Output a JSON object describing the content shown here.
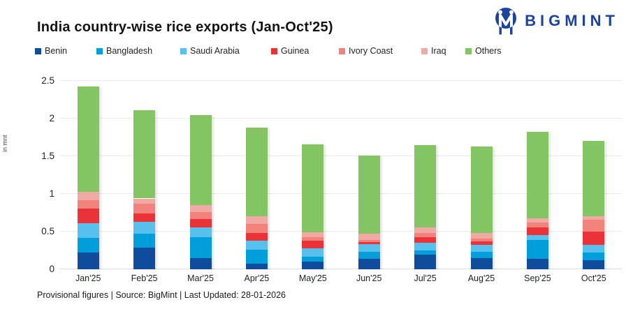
{
  "header": {
    "title": "India country-wise rice exports (Jan-Oct'25)",
    "logo_text": "BIGMINT",
    "logo_color": "#1b449e"
  },
  "chart_data": {
    "type": "bar",
    "stacked": true,
    "title": "India country-wise rice exports (Jan-Oct'25)",
    "ylabel": "in mnt",
    "ylim": [
      0,
      2.5
    ],
    "yticks": [
      0,
      0.5,
      1,
      1.5,
      2,
      2.5
    ],
    "grid": true,
    "legend_position": "top",
    "categories": [
      "Jan'25",
      "Feb'25",
      "Mar'25",
      "Apr'25",
      "May'25",
      "Jun'25",
      "Jul'25",
      "Aug'25",
      "Sep'25",
      "Oct'25"
    ],
    "series": [
      {
        "name": "Benin",
        "color": "#0f4c9c",
        "values": [
          0.22,
          0.29,
          0.15,
          0.07,
          0.1,
          0.14,
          0.19,
          0.15,
          0.14,
          0.12
        ]
      },
      {
        "name": "Bangladesh",
        "color": "#009fdc",
        "values": [
          0.2,
          0.18,
          0.28,
          0.19,
          0.07,
          0.09,
          0.06,
          0.08,
          0.25,
          0.1
        ]
      },
      {
        "name": "Saudi Arabia",
        "color": "#57c0ec",
        "values": [
          0.19,
          0.16,
          0.13,
          0.12,
          0.11,
          0.1,
          0.1,
          0.09,
          0.06,
          0.1
        ]
      },
      {
        "name": "Guinea",
        "color": "#e93338",
        "values": [
          0.2,
          0.11,
          0.11,
          0.1,
          0.1,
          0.03,
          0.08,
          0.05,
          0.11,
          0.18
        ]
      },
      {
        "name": "Ivory Coast",
        "color": "#f2827c",
        "values": [
          0.11,
          0.13,
          0.09,
          0.12,
          0.05,
          0.03,
          0.05,
          0.04,
          0.06,
          0.16
        ]
      },
      {
        "name": "Iraq",
        "color": "#f0a9a3",
        "values": [
          0.11,
          0.07,
          0.09,
          0.1,
          0.06,
          0.08,
          0.08,
          0.07,
          0.06,
          0.04
        ]
      },
      {
        "name": "Others",
        "color": "#84c563",
        "values": [
          1.4,
          1.17,
          1.2,
          1.18,
          1.17,
          1.04,
          1.09,
          1.15,
          1.14,
          1.0
        ]
      }
    ],
    "totals": [
      2.43,
      2.11,
      2.05,
      1.88,
      1.66,
      1.51,
      1.65,
      1.63,
      1.82,
      1.7
    ]
  },
  "footer": {
    "note": "Provisional figures | Source: BigMint | Last Updated: 28-01-2026"
  }
}
